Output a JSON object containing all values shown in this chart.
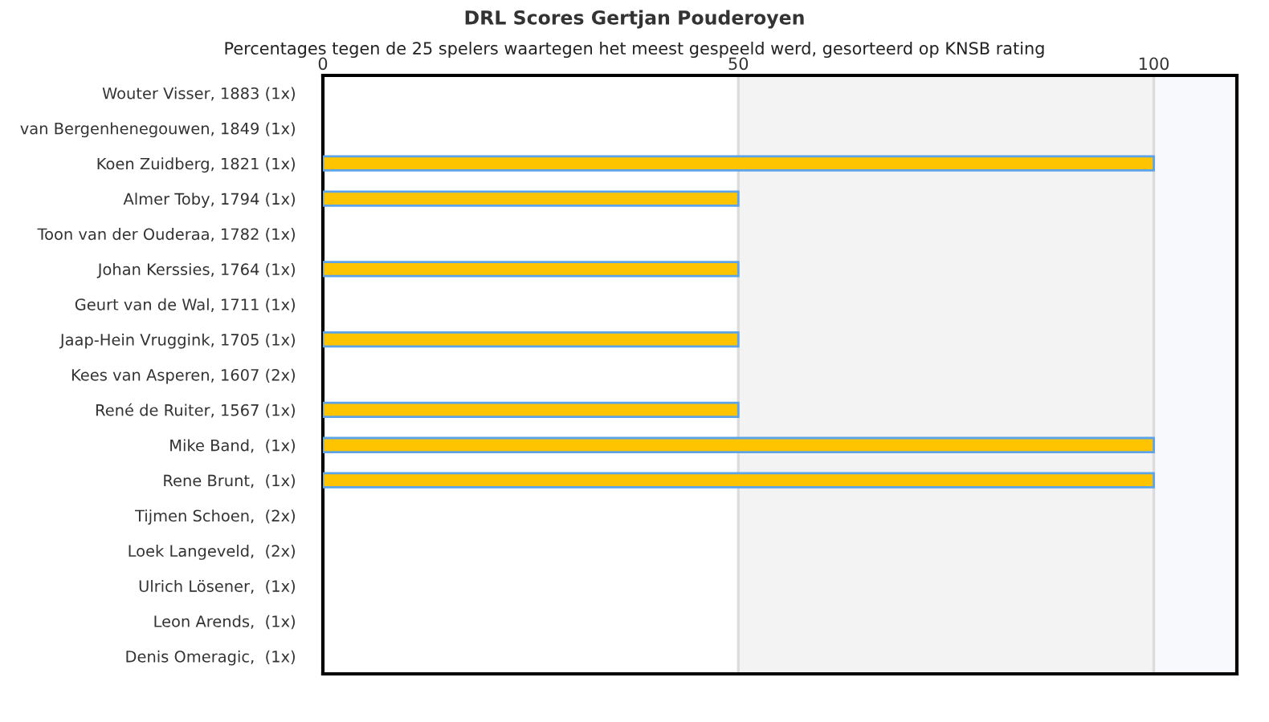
{
  "chart_data": {
    "type": "bar",
    "orientation": "horizontal",
    "title": "DRL Scores Gertjan Pouderoyen",
    "subtitle": "Percentages tegen de 25 spelers waartegen het meest gespeeld werd, gesorteerd op KNSB rating",
    "categories": [
      "Wouter Visser, 1883 (1x)",
      "van Bergenhenegouwen, 1849 (1x)",
      "Koen Zuidberg, 1821 (1x)",
      "Almer Toby, 1794 (1x)",
      "Toon van der Ouderaa, 1782 (1x)",
      "Johan Kerssies, 1764 (1x)",
      "Geurt van de Wal, 1711 (1x)",
      "Jaap-Hein Vruggink, 1705 (1x)",
      "Kees van Asperen, 1607 (2x)",
      "René de Ruiter, 1567 (1x)",
      "Mike Band,  (1x)",
      "Rene Brunt,  (1x)",
      "Tijmen Schoen,  (2x)",
      "Loek Langeveld,  (2x)",
      "Ulrich Lösener,  (1x)",
      "Leon Arends,  (1x)",
      "Denis Omeragic,  (1x)"
    ],
    "values": [
      0,
      0,
      100,
      50,
      0,
      50,
      0,
      50,
      0,
      50,
      100,
      100,
      0,
      0,
      0,
      0,
      0
    ],
    "color": "#ffc400",
    "xlim": [
      0,
      110
    ],
    "xticks": [
      0,
      50,
      100
    ],
    "grid": "x",
    "bands": [
      {
        "axis": "x",
        "from": 50,
        "to": 100,
        "color": "#f3f3f3"
      },
      {
        "axis": "x",
        "from": 100,
        "to": 110,
        "color": "#f7f9fc"
      }
    ]
  }
}
